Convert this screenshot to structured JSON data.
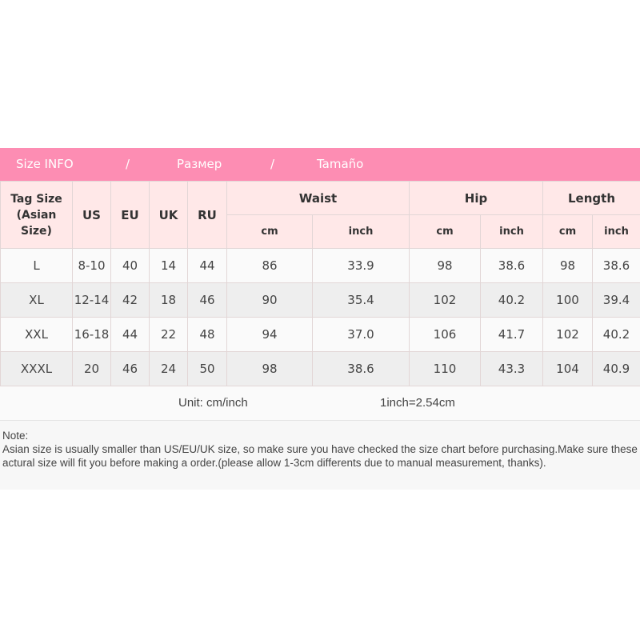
{
  "banner": {
    "en": "Size INFO",
    "sep1": "/",
    "ru": "Размер",
    "sep2": "/",
    "es": "Tamaño"
  },
  "colors": {
    "banner": "#fd8db3",
    "header": "#ffe8e8",
    "row_alt": "#eeeeee"
  },
  "header": {
    "tag": "Tag Size",
    "tag2": "(Asian Size)",
    "us": "US",
    "eu": "EU",
    "uk": "UK",
    "ru": "RU",
    "waist": "Waist",
    "hip": "Hip",
    "length": "Length",
    "cm": "cm",
    "inch": "inch"
  },
  "rows": [
    [
      "L",
      "8-10",
      "40",
      "14",
      "44",
      "86",
      "33.9",
      "98",
      "38.6",
      "98",
      "38.6"
    ],
    [
      "XL",
      "12-14",
      "42",
      "18",
      "46",
      "90",
      "35.4",
      "102",
      "40.2",
      "100",
      "39.4"
    ],
    [
      "XXL",
      "16-18",
      "44",
      "22",
      "48",
      "94",
      "37.0",
      "106",
      "41.7",
      "102",
      "40.2"
    ],
    [
      "XXXL",
      "20",
      "46",
      "24",
      "50",
      "98",
      "38.6",
      "110",
      "43.3",
      "104",
      "40.9"
    ]
  ],
  "unit": {
    "label": "Unit: cm/inch",
    "conversion": "1inch=2.54cm"
  },
  "note": {
    "title": "Note:",
    "text": "Asian size is usually smaller than US/EU/UK size, so make sure you have checked the size chart before purchasing.Make sure these actural size will fit you before making a order.(please allow 1-3cm differents due to manual measurement, thanks)."
  }
}
